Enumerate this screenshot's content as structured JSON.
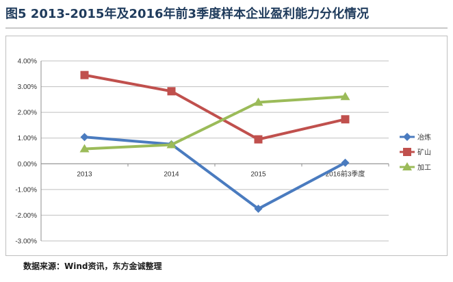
{
  "title": "图5  2013-2015年及2016年前3季度样本企业盈利能力分化情况",
  "source": "数据来源：Wind资讯，东方金诚整理",
  "chart_data": {
    "type": "line",
    "categories": [
      "2013",
      "2014",
      "2015",
      "2016前3季度"
    ],
    "series": [
      {
        "name": "冶炼",
        "color": "#4a7bbf",
        "marker": "diamond",
        "values": [
          1.04,
          0.76,
          -1.75,
          0.04
        ]
      },
      {
        "name": "矿山",
        "color": "#c0504d",
        "marker": "square",
        "values": [
          3.45,
          2.82,
          0.95,
          1.73
        ]
      },
      {
        "name": "加工",
        "color": "#9bbb59",
        "marker": "triangle",
        "values": [
          0.58,
          0.74,
          2.39,
          2.61
        ]
      }
    ],
    "y_ticks": [
      "4.00%",
      "3.00%",
      "2.00%",
      "1.00%",
      "0.00%",
      "-1.00%",
      "-2.00%",
      "-3.00%"
    ],
    "ylim": [
      -3,
      4
    ],
    "grid": true,
    "legend": "right"
  }
}
